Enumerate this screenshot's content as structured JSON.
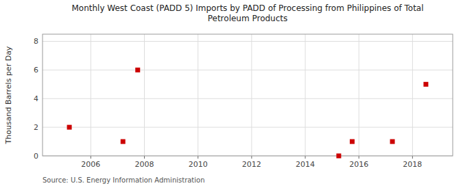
{
  "chart_data": {
    "type": "scatter",
    "title": "Monthly West Coast (PADD 5) Imports by PADD of Processing from Philippines of Total\nPetroleum Products",
    "ylabel": "Thousand Barrels per Day",
    "source": "Source: U.S. Energy Information Administration",
    "x": [
      2005.2,
      2007.2,
      2007.75,
      2015.25,
      2015.75,
      2017.25,
      2018.5
    ],
    "values": [
      2.0,
      1.0,
      6.0,
      0.0,
      1.0,
      1.0,
      5.0
    ],
    "color": "#cc0000",
    "marker": "square",
    "xlim": [
      2004.2,
      2019.5
    ],
    "ylim": [
      0,
      8.5
    ],
    "xticks": [
      2006,
      2008,
      2010,
      2012,
      2014,
      2016,
      2018
    ],
    "yticks": [
      0,
      2,
      4,
      6,
      8
    ],
    "grid": true
  }
}
